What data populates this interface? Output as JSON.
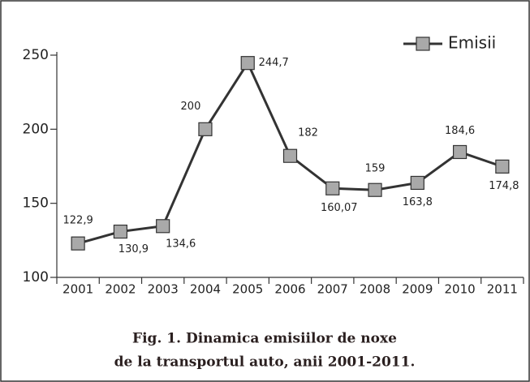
{
  "chart_data": {
    "type": "line",
    "caption": [
      "Fig. 1. Dinamica  emisiilor de noxe",
      "de la transportul auto, anii 2001-2011."
    ],
    "categories": [
      "2001",
      "2002",
      "2003",
      "2004",
      "2005",
      "2006",
      "2007",
      "2008",
      "2009",
      "2010",
      "2011"
    ],
    "series": [
      {
        "name": "Emisii",
        "color": "#333333",
        "marker_color": "#a9a9a9",
        "values": [
          122.9,
          130.9,
          134.6,
          200,
          244.7,
          182,
          160.07,
          159,
          163.8,
          184.6,
          174.8
        ],
        "value_labels": [
          "122,9",
          "130,9",
          "134,6",
          "200",
          "244,7",
          "182",
          "160,07",
          "159",
          "163,8",
          "184,6",
          "174,8"
        ]
      }
    ],
    "ylim": [
      100,
      250
    ],
    "yticks": [
      100,
      150,
      200,
      250
    ],
    "grid": false,
    "legend": "top-right"
  }
}
